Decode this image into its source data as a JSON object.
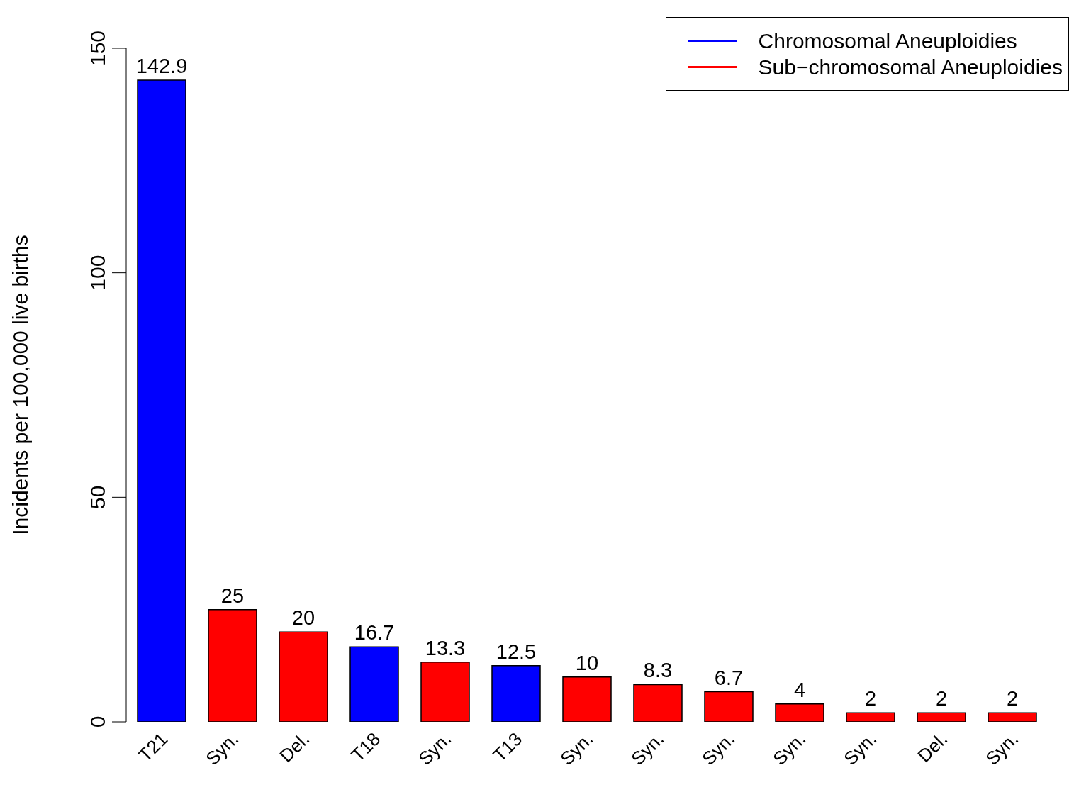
{
  "chart_data": {
    "type": "bar",
    "ylabel": "Incidents per 100,000 live births",
    "categories": [
      "T21",
      "Syn.",
      "Del.",
      "T18",
      "Syn.",
      "T13",
      "Syn.",
      "Syn.",
      "Syn.",
      "Syn.",
      "Syn.",
      "Del.",
      "Syn."
    ],
    "series": [
      {
        "name": "Chromosomal Aneuploidies",
        "color": "#0000ff",
        "values": [
          142.9,
          null,
          null,
          16.7,
          null,
          12.5,
          null,
          null,
          null,
          null,
          null,
          null,
          null
        ]
      },
      {
        "name": "Sub−chromosomal Aneuploidies",
        "color": "#ff0000",
        "values": [
          null,
          25,
          20,
          null,
          13.3,
          null,
          10,
          8.3,
          6.7,
          4,
          2,
          2,
          2
        ]
      }
    ],
    "stacked": true,
    "ylim": [
      0,
      150
    ],
    "yticks": [
      0,
      50,
      100,
      150
    ],
    "data_labels": true,
    "legend": "top right",
    "grid": false
  }
}
